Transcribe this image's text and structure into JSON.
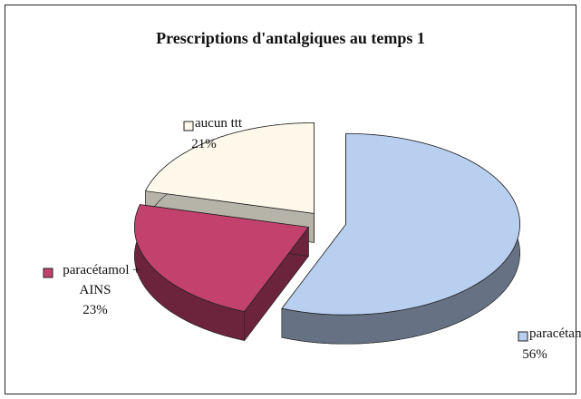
{
  "chart_data": {
    "type": "pie",
    "title": "Prescriptions d'antalgiques au temps 1",
    "categories": [
      "paracétamol",
      "paracétamol + AINS",
      "aucun ttt"
    ],
    "values": [
      56,
      23,
      21
    ],
    "value_labels": [
      "56%",
      "23%",
      "21%"
    ],
    "colors": [
      "#b9cff0",
      "#c2416d",
      "#fdf8ea"
    ]
  }
}
